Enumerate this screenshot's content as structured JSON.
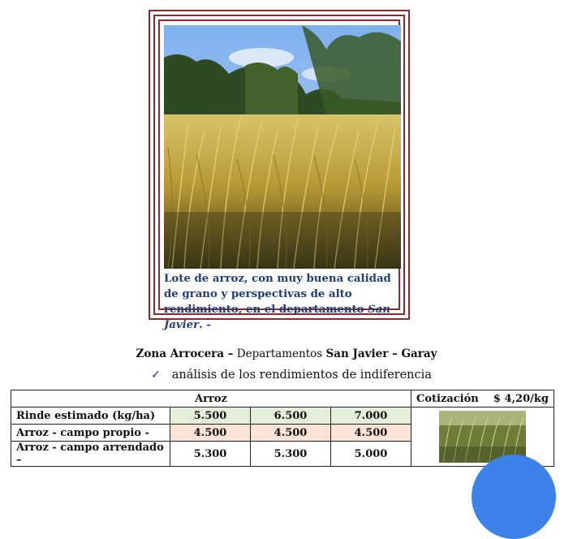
{
  "photo": {
    "caption_part1": "Lote de arroz, con muy buena calidad de grano y perspectivas de alto rendimiento, en el departamento ",
    "caption_place": "San Javier",
    "caption_end": ". -"
  },
  "zona": {
    "label": "Zona Arrocera –",
    "text": " Departamentos ",
    "places": "San Javier – Garay"
  },
  "analisis": {
    "check": "✓",
    "text": "análisis de los rendimientos de indiferencia"
  },
  "table": {
    "header": "Arroz",
    "cotizacion_label": "Cotización",
    "cotizacion_value": "$ 4,20/kg",
    "rows": [
      {
        "label": "Rinde estimado (kg/ha)",
        "values": [
          "5.500",
          "6.500",
          "7.000"
        ]
      },
      {
        "label": "Arroz  - campo propio -",
        "values": [
          "4.500",
          "4.500",
          "4.500"
        ]
      },
      {
        "label": "Arroz - campo arrendado –",
        "values": [
          "5.300",
          "5.300",
          "5.000"
        ]
      }
    ]
  },
  "colors": {
    "frame": "#8b2a2a",
    "caption": "#1f3d78",
    "row_green": "#e3efd9",
    "row_peach": "#fbe4d5",
    "circle": "#3d82e8"
  }
}
